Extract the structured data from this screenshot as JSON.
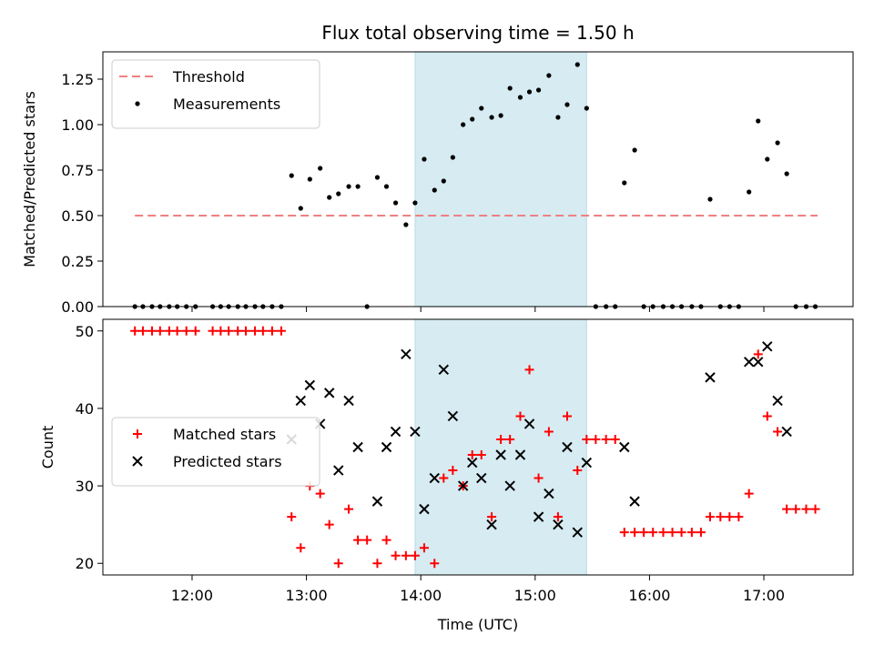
{
  "chart_data": {
    "type": "scatter",
    "title": "Flux total observing time = 1.50 h",
    "xlabel": "Time (UTC)",
    "x_ticks": [
      "12:00",
      "13:00",
      "14:00",
      "15:00",
      "16:00",
      "17:00"
    ],
    "x_range_hours": [
      11.22,
      17.78
    ],
    "highlight_span_hours": [
      13.95,
      15.45
    ],
    "highlight_color": "#add8e6",
    "panels": [
      {
        "ylabel": "Matched/Predicted stars",
        "ylim": [
          0,
          1.4
        ],
        "yticks": [
          "0.00",
          "0.25",
          "0.50",
          "0.75",
          "1.00",
          "1.25"
        ],
        "legend_placement": "top-left",
        "threshold": {
          "name": "Threshold",
          "value": 0.5,
          "x_range": [
            11.5,
            17.47
          ],
          "color": "#f08080"
        },
        "series": [
          {
            "name": "Measurements",
            "color": "#000000",
            "marker": "dot",
            "points": [
              [
                11.5,
                0
              ],
              [
                11.57,
                0
              ],
              [
                11.65,
                0
              ],
              [
                11.72,
                0
              ],
              [
                11.8,
                0
              ],
              [
                11.87,
                0
              ],
              [
                11.95,
                0
              ],
              [
                12.03,
                0
              ],
              [
                12.18,
                0
              ],
              [
                12.25,
                0
              ],
              [
                12.32,
                0
              ],
              [
                12.4,
                0
              ],
              [
                12.47,
                0
              ],
              [
                12.55,
                0
              ],
              [
                12.62,
                0
              ],
              [
                12.7,
                0
              ],
              [
                12.78,
                0
              ],
              [
                12.87,
                0.72
              ],
              [
                12.95,
                0.54
              ],
              [
                13.03,
                0.7
              ],
              [
                13.12,
                0.76
              ],
              [
                13.2,
                0.6
              ],
              [
                13.28,
                0.62
              ],
              [
                13.37,
                0.66
              ],
              [
                13.45,
                0.66
              ],
              [
                13.53,
                0
              ],
              [
                13.62,
                0.71
              ],
              [
                13.7,
                0.66
              ],
              [
                13.78,
                0.57
              ],
              [
                13.87,
                0.45
              ],
              [
                13.95,
                0.57
              ],
              [
                14.03,
                0.81
              ],
              [
                14.12,
                0.64
              ],
              [
                14.2,
                0.69
              ],
              [
                14.28,
                0.82
              ],
              [
                14.37,
                1.0
              ],
              [
                14.45,
                1.03
              ],
              [
                14.53,
                1.09
              ],
              [
                14.62,
                1.04
              ],
              [
                14.7,
                1.05
              ],
              [
                14.78,
                1.2
              ],
              [
                14.87,
                1.15
              ],
              [
                14.95,
                1.18
              ],
              [
                15.03,
                1.19
              ],
              [
                15.12,
                1.27
              ],
              [
                15.2,
                1.04
              ],
              [
                15.28,
                1.11
              ],
              [
                15.37,
                1.33
              ],
              [
                15.45,
                1.09
              ],
              [
                15.53,
                0
              ],
              [
                15.62,
                0
              ],
              [
                15.7,
                0
              ],
              [
                15.78,
                0.68
              ],
              [
                15.87,
                0.86
              ],
              [
                15.95,
                0
              ],
              [
                16.03,
                0
              ],
              [
                16.12,
                0
              ],
              [
                16.2,
                0
              ],
              [
                16.28,
                0
              ],
              [
                16.37,
                0
              ],
              [
                16.45,
                0
              ],
              [
                16.53,
                0.59
              ],
              [
                16.62,
                0
              ],
              [
                16.7,
                0
              ],
              [
                16.78,
                0
              ],
              [
                16.87,
                0.63
              ],
              [
                16.95,
                1.02
              ],
              [
                17.03,
                0.81
              ],
              [
                17.12,
                0.9
              ],
              [
                17.2,
                0.73
              ],
              [
                17.28,
                0
              ],
              [
                17.37,
                0
              ],
              [
                17.45,
                0
              ]
            ]
          }
        ]
      },
      {
        "ylabel": "Count",
        "ylim": [
          18.5,
          51.5
        ],
        "yticks": [
          "20",
          "30",
          "40",
          "50"
        ],
        "legend_placement": "center-left",
        "series": [
          {
            "name": "Matched stars",
            "color": "#ff0000",
            "marker": "plus",
            "points": [
              [
                11.5,
                50
              ],
              [
                11.57,
                50
              ],
              [
                11.65,
                50
              ],
              [
                11.72,
                50
              ],
              [
                11.8,
                50
              ],
              [
                11.87,
                50
              ],
              [
                11.95,
                50
              ],
              [
                12.03,
                50
              ],
              [
                12.18,
                50
              ],
              [
                12.25,
                50
              ],
              [
                12.32,
                50
              ],
              [
                12.4,
                50
              ],
              [
                12.47,
                50
              ],
              [
                12.55,
                50
              ],
              [
                12.62,
                50
              ],
              [
                12.7,
                50
              ],
              [
                12.78,
                50
              ],
              [
                12.87,
                26
              ],
              [
                12.95,
                22
              ],
              [
                13.03,
                30
              ],
              [
                13.12,
                29
              ],
              [
                13.2,
                25
              ],
              [
                13.28,
                20
              ],
              [
                13.37,
                27
              ],
              [
                13.45,
                23
              ],
              [
                13.53,
                23
              ],
              [
                13.62,
                20
              ],
              [
                13.7,
                23
              ],
              [
                13.78,
                21
              ],
              [
                13.87,
                21
              ],
              [
                13.95,
                21
              ],
              [
                14.03,
                22
              ],
              [
                14.12,
                20
              ],
              [
                14.2,
                31
              ],
              [
                14.28,
                32
              ],
              [
                14.37,
                30
              ],
              [
                14.45,
                34
              ],
              [
                14.53,
                34
              ],
              [
                14.62,
                26
              ],
              [
                14.7,
                36
              ],
              [
                14.78,
                36
              ],
              [
                14.87,
                39
              ],
              [
                14.95,
                45
              ],
              [
                15.03,
                31
              ],
              [
                15.12,
                37
              ],
              [
                15.2,
                26
              ],
              [
                15.28,
                39
              ],
              [
                15.37,
                32
              ],
              [
                15.45,
                36
              ],
              [
                15.53,
                36
              ],
              [
                15.62,
                36
              ],
              [
                15.7,
                36
              ],
              [
                15.78,
                24
              ],
              [
                15.87,
                24
              ],
              [
                15.95,
                24
              ],
              [
                16.03,
                24
              ],
              [
                16.12,
                24
              ],
              [
                16.2,
                24
              ],
              [
                16.28,
                24
              ],
              [
                16.37,
                24
              ],
              [
                16.45,
                24
              ],
              [
                16.53,
                26
              ],
              [
                16.62,
                26
              ],
              [
                16.7,
                26
              ],
              [
                16.78,
                26
              ],
              [
                16.87,
                29
              ],
              [
                16.95,
                47
              ],
              [
                17.03,
                39
              ],
              [
                17.12,
                37
              ],
              [
                17.2,
                27
              ],
              [
                17.28,
                27
              ],
              [
                17.37,
                27
              ],
              [
                17.45,
                27
              ]
            ]
          },
          {
            "name": "Predicted stars",
            "color": "#000000",
            "marker": "x",
            "points": [
              [
                12.87,
                36
              ],
              [
                12.95,
                41
              ],
              [
                13.03,
                43
              ],
              [
                13.12,
                38
              ],
              [
                13.2,
                42
              ],
              [
                13.28,
                32
              ],
              [
                13.37,
                41
              ],
              [
                13.45,
                35
              ],
              [
                13.62,
                28
              ],
              [
                13.7,
                35
              ],
              [
                13.78,
                37
              ],
              [
                13.87,
                47
              ],
              [
                13.95,
                37
              ],
              [
                14.03,
                27
              ],
              [
                14.12,
                31
              ],
              [
                14.2,
                45
              ],
              [
                14.28,
                39
              ],
              [
                14.37,
                30
              ],
              [
                14.45,
                33
              ],
              [
                14.53,
                31
              ],
              [
                14.62,
                25
              ],
              [
                14.7,
                34
              ],
              [
                14.78,
                30
              ],
              [
                14.87,
                34
              ],
              [
                14.95,
                38
              ],
              [
                15.03,
                26
              ],
              [
                15.12,
                29
              ],
              [
                15.2,
                25
              ],
              [
                15.28,
                35
              ],
              [
                15.37,
                24
              ],
              [
                15.45,
                33
              ],
              [
                15.78,
                35
              ],
              [
                15.87,
                28
              ],
              [
                16.53,
                44
              ],
              [
                16.87,
                46
              ],
              [
                16.95,
                46
              ],
              [
                17.03,
                48
              ],
              [
                17.12,
                41
              ],
              [
                17.2,
                37
              ]
            ]
          }
        ]
      }
    ]
  }
}
